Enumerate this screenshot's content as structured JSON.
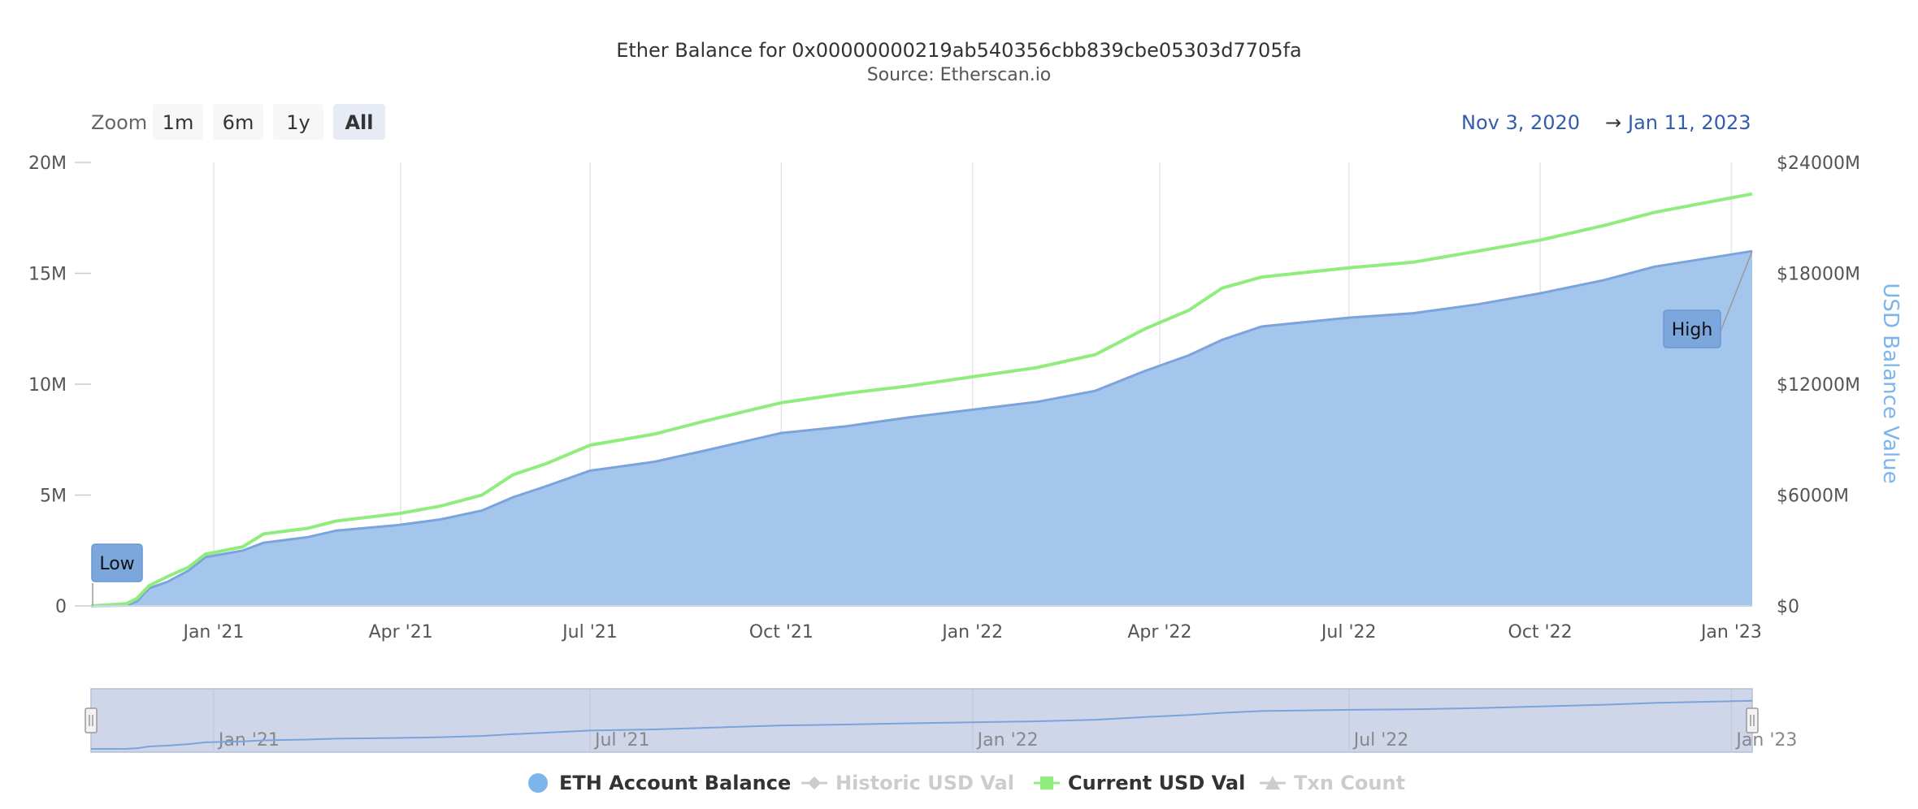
{
  "chart_data": {
    "type": "area",
    "title": "Ether Balance for 0x00000000219ab540356cbb839cbe05303d7705fa",
    "subtitle": "Source: Etherscan.io",
    "xlabel": "",
    "ylabel": "",
    "y2label": "USD Balance Value",
    "x_range": [
      "2020-11-03",
      "2023-01-11"
    ],
    "ylim": [
      0,
      20000000
    ],
    "y2lim": [
      0,
      24000000000
    ],
    "y_ticks": [
      {
        "value": 0,
        "label": "0"
      },
      {
        "value": 5000000,
        "label": "5M"
      },
      {
        "value": 10000000,
        "label": "10M"
      },
      {
        "value": 15000000,
        "label": "15M"
      },
      {
        "value": 20000000,
        "label": "20M"
      }
    ],
    "y2_ticks": [
      {
        "value": 0,
        "label": "$0"
      },
      {
        "value": 6000000000,
        "label": "$6000M"
      },
      {
        "value": 12000000000,
        "label": "$12000M"
      },
      {
        "value": 18000000000,
        "label": "$18000M"
      },
      {
        "value": 24000000000,
        "label": "$24000M"
      }
    ],
    "x_ticks": [
      {
        "date": "2021-01-01",
        "label": "Jan '21"
      },
      {
        "date": "2021-04-01",
        "label": "Apr '21"
      },
      {
        "date": "2021-07-01",
        "label": "Jul '21"
      },
      {
        "date": "2021-10-01",
        "label": "Oct '21"
      },
      {
        "date": "2022-01-01",
        "label": "Jan '22"
      },
      {
        "date": "2022-04-01",
        "label": "Apr '22"
      },
      {
        "date": "2022-07-01",
        "label": "Jul '22"
      },
      {
        "date": "2022-10-01",
        "label": "Oct '22"
      },
      {
        "date": "2023-01-01",
        "label": "Jan '23"
      }
    ],
    "grid": true,
    "legend_position": "bottom",
    "series": [
      {
        "name": "ETH Account Balance",
        "type": "area",
        "color": "#7cb5ec",
        "axis": "left",
        "visible": true,
        "points": [
          [
            "2020-11-03",
            0
          ],
          [
            "2020-11-20",
            20000
          ],
          [
            "2020-11-25",
            200000
          ],
          [
            "2020-12-01",
            800000
          ],
          [
            "2020-12-10",
            1100000
          ],
          [
            "2020-12-20",
            1600000
          ],
          [
            "2020-12-28",
            2200000
          ],
          [
            "2021-01-15",
            2500000
          ],
          [
            "2021-01-25",
            2850000
          ],
          [
            "2021-02-15",
            3100000
          ],
          [
            "2021-03-01",
            3400000
          ],
          [
            "2021-03-31",
            3650000
          ],
          [
            "2021-04-20",
            3900000
          ],
          [
            "2021-05-10",
            4300000
          ],
          [
            "2021-05-25",
            4900000
          ],
          [
            "2021-06-10",
            5400000
          ],
          [
            "2021-07-01",
            6100000
          ],
          [
            "2021-08-01",
            6500000
          ],
          [
            "2021-08-25",
            7000000
          ],
          [
            "2021-10-01",
            7800000
          ],
          [
            "2021-11-01",
            8100000
          ],
          [
            "2021-12-01",
            8500000
          ],
          [
            "2022-01-01",
            8850000
          ],
          [
            "2022-02-01",
            9200000
          ],
          [
            "2022-03-01",
            9700000
          ],
          [
            "2022-03-25",
            10600000
          ],
          [
            "2022-04-15",
            11300000
          ],
          [
            "2022-05-01",
            12000000
          ],
          [
            "2022-05-20",
            12600000
          ],
          [
            "2022-07-01",
            13000000
          ],
          [
            "2022-08-01",
            13200000
          ],
          [
            "2022-09-01",
            13600000
          ],
          [
            "2022-10-01",
            14100000
          ],
          [
            "2022-11-01",
            14700000
          ],
          [
            "2022-11-25",
            15300000
          ],
          [
            "2023-01-11",
            16000000
          ]
        ]
      },
      {
        "name": "Historic USD Val",
        "type": "line",
        "color": "#cccccc",
        "axis": "right",
        "visible": false,
        "points": []
      },
      {
        "name": "Current USD Val",
        "type": "line",
        "color": "#90ed7d",
        "axis": "right",
        "visible": true,
        "points": [
          [
            "2020-11-03",
            0
          ],
          [
            "2020-11-20",
            120000000
          ],
          [
            "2020-11-25",
            400000000
          ],
          [
            "2020-12-01",
            1100000000
          ],
          [
            "2020-12-10",
            1600000000
          ],
          [
            "2020-12-20",
            2100000000
          ],
          [
            "2020-12-28",
            2800000000
          ],
          [
            "2021-01-15",
            3200000000
          ],
          [
            "2021-01-25",
            3900000000
          ],
          [
            "2021-02-15",
            4200000000
          ],
          [
            "2021-03-01",
            4600000000
          ],
          [
            "2021-03-31",
            5000000000
          ],
          [
            "2021-04-20",
            5400000000
          ],
          [
            "2021-05-10",
            6000000000
          ],
          [
            "2021-05-25",
            7100000000
          ],
          [
            "2021-06-10",
            7700000000
          ],
          [
            "2021-07-01",
            8700000000
          ],
          [
            "2021-08-01",
            9300000000
          ],
          [
            "2021-08-25",
            10000000000
          ],
          [
            "2021-10-01",
            11000000000
          ],
          [
            "2021-11-01",
            11500000000
          ],
          [
            "2021-12-01",
            11900000000
          ],
          [
            "2022-01-01",
            12400000000
          ],
          [
            "2022-02-01",
            12900000000
          ],
          [
            "2022-03-01",
            13600000000
          ],
          [
            "2022-03-25",
            15000000000
          ],
          [
            "2022-04-15",
            16000000000
          ],
          [
            "2022-05-01",
            17200000000
          ],
          [
            "2022-05-20",
            17800000000
          ],
          [
            "2022-07-01",
            18300000000
          ],
          [
            "2022-08-01",
            18600000000
          ],
          [
            "2022-09-01",
            19200000000
          ],
          [
            "2022-10-01",
            19800000000
          ],
          [
            "2022-11-01",
            20600000000
          ],
          [
            "2022-11-25",
            21300000000
          ],
          [
            "2023-01-11",
            22300000000
          ]
        ]
      },
      {
        "name": "Txn Count",
        "type": "line",
        "color": "#cccccc",
        "axis": "left",
        "visible": false,
        "points": []
      }
    ],
    "annotations": [
      {
        "text": "Low",
        "date": "2020-11-03",
        "value": 0
      },
      {
        "text": "High",
        "date": "2023-01-11",
        "value": 16000000
      }
    ],
    "navigator": {
      "x_ticks": [
        {
          "date": "2021-01-01",
          "label": "Jan '21"
        },
        {
          "date": "2021-07-01",
          "label": "Jul '21"
        },
        {
          "date": "2022-01-01",
          "label": "Jan '22"
        },
        {
          "date": "2022-07-01",
          "label": "Jul '22"
        },
        {
          "date": "2023-01-01",
          "label": "Jan '23"
        }
      ]
    }
  },
  "controls": {
    "zoom_label": "Zoom",
    "zoom_buttons": [
      {
        "label": "1m",
        "selected": false
      },
      {
        "label": "6m",
        "selected": false
      },
      {
        "label": "1y",
        "selected": false
      },
      {
        "label": "All",
        "selected": true
      }
    ],
    "range_from": "Nov 3, 2020",
    "range_arrow": "→",
    "range_to": "Jan 11, 2023"
  },
  "colors": {
    "area_fill": "#a4c6ec",
    "area_line": "#7ba3dc",
    "usd_line": "#90ed7d",
    "text": "#333333",
    "axis_text": "#555555",
    "grid": "#e6e6e6",
    "range_text": "#335cad",
    "y2_title": "#7cb5ec",
    "legend_hidden": "#cccccc"
  }
}
